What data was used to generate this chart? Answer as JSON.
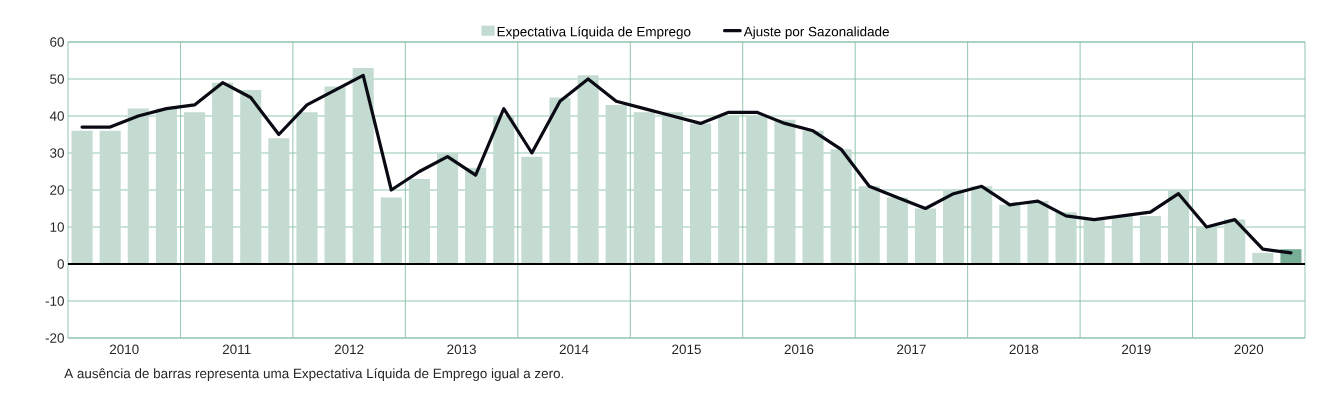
{
  "chart_data": {
    "type": "bar",
    "x": [
      2010.125,
      2010.375,
      2010.625,
      2010.875,
      2011.125,
      2011.375,
      2011.625,
      2011.875,
      2012.125,
      2012.375,
      2012.625,
      2012.875,
      2013.125,
      2013.375,
      2013.625,
      2013.875,
      2014.125,
      2014.375,
      2014.625,
      2014.875,
      2015.125,
      2015.375,
      2015.625,
      2015.875,
      2016.125,
      2016.375,
      2016.625,
      2016.875,
      2017.125,
      2017.375,
      2017.625,
      2017.875,
      2018.125,
      2018.375,
      2018.625,
      2018.875,
      2019.125,
      2019.375,
      2019.625,
      2019.875,
      2020.125,
      2020.375,
      2020.625,
      2020.875
    ],
    "series": [
      {
        "name": "Expectativa Líquida de Emprego",
        "color": "#c3dbd1",
        "values": [
          36,
          36,
          42,
          42,
          41,
          49,
          47,
          34,
          41,
          48,
          53,
          18,
          23,
          30,
          26,
          40,
          29,
          45,
          51,
          43,
          41,
          41,
          38,
          40,
          40,
          39,
          36,
          31,
          21,
          18,
          15,
          20,
          21,
          16,
          17,
          14,
          12,
          13,
          13,
          20,
          10,
          12,
          3,
          4
        ],
        "colors": [
          "#c3dbd1",
          "#c3dbd1",
          "#c3dbd1",
          "#c3dbd1",
          "#c3dbd1",
          "#c3dbd1",
          "#c3dbd1",
          "#c3dbd1",
          "#c3dbd1",
          "#c3dbd1",
          "#c3dbd1",
          "#c3dbd1",
          "#c3dbd1",
          "#c3dbd1",
          "#c3dbd1",
          "#c3dbd1",
          "#c3dbd1",
          "#c3dbd1",
          "#c3dbd1",
          "#c3dbd1",
          "#c3dbd1",
          "#c3dbd1",
          "#c3dbd1",
          "#c3dbd1",
          "#c3dbd1",
          "#c3dbd1",
          "#c3dbd1",
          "#c3dbd1",
          "#c3dbd1",
          "#c3dbd1",
          "#c3dbd1",
          "#c3dbd1",
          "#c3dbd1",
          "#c3dbd1",
          "#c3dbd1",
          "#c3dbd1",
          "#c3dbd1",
          "#c3dbd1",
          "#c3dbd1",
          "#c3dbd1",
          "#c3dbd1",
          "#c3dbd1",
          "#c3dbd1",
          "#76ae96"
        ]
      },
      {
        "name": "Ajuste por Sazonalidade",
        "type": "line",
        "color": "#0a0a14",
        "values": [
          37,
          37,
          40,
          42,
          43,
          49,
          45,
          35,
          43,
          47,
          51,
          20,
          25,
          29,
          24,
          42,
          30,
          44,
          50,
          44,
          42,
          40,
          38,
          41,
          41,
          38,
          36,
          31,
          21,
          18,
          15,
          19,
          21,
          16,
          17,
          13,
          12,
          13,
          14,
          19,
          10,
          12,
          4,
          3
        ]
      }
    ],
    "xlim": [
      2010,
      2021
    ],
    "xticks": [
      {
        "value": 2010.5,
        "label": "2010"
      },
      {
        "value": 2011,
        "label": null
      },
      {
        "value": 2011.5,
        "label": "2011"
      },
      {
        "value": 2012,
        "label": null
      },
      {
        "value": 2012.5,
        "label": "2012"
      },
      {
        "value": 2013,
        "label": null
      },
      {
        "value": 2013.5,
        "label": "2013"
      },
      {
        "value": 2014,
        "label": null
      },
      {
        "value": 2014.5,
        "label": "2014"
      },
      {
        "value": 2015,
        "label": null
      },
      {
        "value": 2015.5,
        "label": "2015"
      },
      {
        "value": 2016,
        "label": null
      },
      {
        "value": 2016.5,
        "label": "2016"
      },
      {
        "value": 2017,
        "label": null
      },
      {
        "value": 2017.5,
        "label": "2017"
      },
      {
        "value": 2018,
        "label": null
      },
      {
        "value": 2018.5,
        "label": "2018"
      },
      {
        "value": 2019,
        "label": null
      },
      {
        "value": 2019.5,
        "label": "2019"
      },
      {
        "value": 2020,
        "label": null
      },
      {
        "value": 2020.5,
        "label": "2020"
      }
    ],
    "ylim": [
      -20,
      60
    ],
    "yticks": [
      -20,
      -10,
      0,
      10,
      20,
      30,
      40,
      50,
      60
    ],
    "grid": true,
    "legend": "top",
    "ref_lines": [
      {
        "axis": "y",
        "value": 0,
        "color": "#000000"
      }
    ],
    "annotations": [
      "A ausência de barras representa uma Expectativa Líquida de Emprego igual a zero."
    ]
  }
}
